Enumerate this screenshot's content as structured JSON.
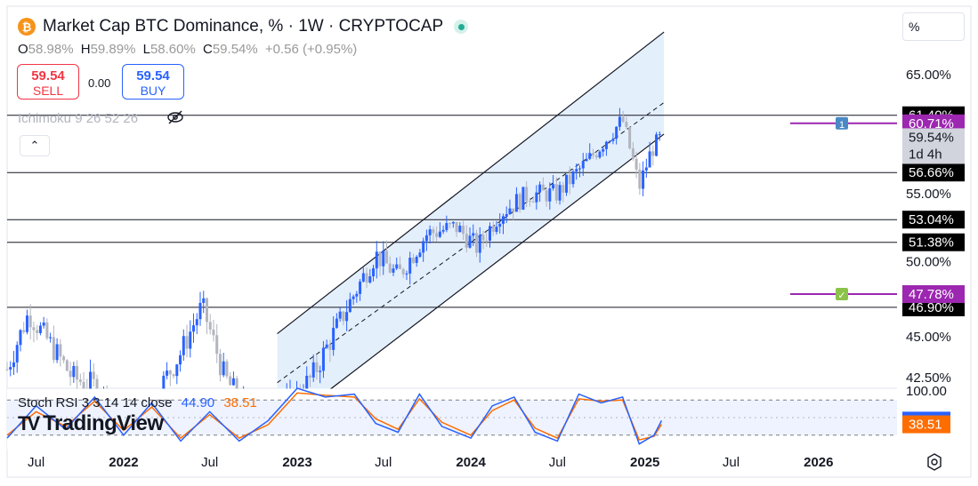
{
  "header": {
    "logo_glyph": "₿",
    "title": "Market Cap BTC Dominance, % · 1W · CRYPTOCAP",
    "ohlc": {
      "o_label": "O",
      "o": "58.98%",
      "h_label": "H",
      "h": "59.89%",
      "l_label": "L",
      "l": "58.60%",
      "c_label": "C",
      "c": "59.54%",
      "change": "+0.56 (+0.95%)"
    }
  },
  "trade": {
    "sell_price": "59.54",
    "sell_label": "SELL",
    "spread": "0.00",
    "buy_price": "59.54",
    "buy_label": "BUY"
  },
  "indicator_label": "Ichimoku 9 26 52 26",
  "scale_button": "%",
  "rsi_legend": {
    "label": "Stoch RSI 3 3 14 14 close",
    "k": "44.90",
    "d": "38.51"
  },
  "brand": {
    "mark": "TV",
    "name": "TradingView"
  },
  "icons": [
    "bitcoin-icon",
    "live-dot-icon",
    "eye-off-icon",
    "chevron-up-icon",
    "gear-icon",
    "alert-flag-icon",
    "check-icon"
  ],
  "colors": {
    "up": "#2962ff",
    "down": "#b2b5be",
    "channel_fill": "#dbe9fb",
    "rsi_k": "#2962ff",
    "rsi_d": "#ff6d00",
    "alert": "#9c27b0",
    "label_dark": "#000000"
  },
  "chart_data": {
    "type": "line",
    "title": "Market Cap BTC Dominance, % · 1W · CRYPTOCAP",
    "price_axis": {
      "ticks": [
        "65.00%",
        "60.00%",
        "55.00%",
        "50.00%",
        "45.00%",
        "42.50%"
      ],
      "scale": "log"
    },
    "time_axis": {
      "ticks": [
        "Jul",
        "2022",
        "Jul",
        "2023",
        "Jul",
        "2024",
        "Jul",
        "2025",
        "Jul",
        "2026"
      ],
      "range": [
        "2021-05",
        "2026-05"
      ]
    },
    "series": [
      {
        "values": [
          {
            "date": "2021-05-01",
            "value": 43.0
          },
          {
            "date": "2021-06-15",
            "value": 46.5
          },
          {
            "date": "2021-08-01",
            "value": 44.5
          },
          {
            "date": "2021-09-15",
            "value": 42.5
          },
          {
            "date": "2021-11-01",
            "value": 42.0
          },
          {
            "date": "2022-01-01",
            "value": 40.0
          },
          {
            "date": "2022-03-01",
            "value": 41.0
          },
          {
            "date": "2022-05-01",
            "value": 44.0
          },
          {
            "date": "2022-06-15",
            "value": 47.0
          },
          {
            "date": "2022-08-01",
            "value": 42.5
          },
          {
            "date": "2022-10-01",
            "value": 40.0
          },
          {
            "date": "2022-12-01",
            "value": 40.5
          },
          {
            "date": "2023-02-01",
            "value": 42.5
          },
          {
            "date": "2023-04-01",
            "value": 46.0
          },
          {
            "date": "2023-06-15",
            "value": 50.5
          },
          {
            "date": "2023-08-01",
            "value": 49.0
          },
          {
            "date": "2023-10-01",
            "value": 52.0
          },
          {
            "date": "2023-12-01",
            "value": 52.5
          },
          {
            "date": "2024-01-15",
            "value": 51.0
          },
          {
            "date": "2024-03-01",
            "value": 53.5
          },
          {
            "date": "2024-05-01",
            "value": 55.0
          },
          {
            "date": "2024-07-01",
            "value": 55.0
          },
          {
            "date": "2024-09-01",
            "value": 57.5
          },
          {
            "date": "2024-11-15",
            "value": 61.0
          },
          {
            "date": "2024-12-20",
            "value": 55.5
          },
          {
            "date": "2025-01-15",
            "value": 58.5
          },
          {
            "date": "2025-02-05",
            "value": 59.54
          }
        ]
      }
    ],
    "channel": {
      "upper": [
        {
          "date": "2022-11-20",
          "value": 45.2
        },
        {
          "date": "2025-02-10",
          "value": 69.0
        }
      ],
      "middle": [
        {
          "date": "2022-11-20",
          "value": 42.2
        },
        {
          "date": "2025-02-10",
          "value": 62.5
        }
      ],
      "lower": [
        {
          "date": "2022-11-20",
          "value": 39.5
        },
        {
          "date": "2025-02-10",
          "value": 59.8
        }
      ]
    },
    "horizontal_levels": [
      {
        "value": 61.4,
        "label": "61.40%",
        "style": "black"
      },
      {
        "value": 56.66,
        "label": "56.66%",
        "style": "black"
      },
      {
        "value": 53.04,
        "label": "53.04%",
        "style": "black"
      },
      {
        "value": 51.38,
        "label": "51.38%",
        "style": "black"
      },
      {
        "value": 46.9,
        "label": "46.90%",
        "style": "black"
      }
    ],
    "alerts": [
      {
        "value": 60.71,
        "label": "60.71%",
        "marker": "1"
      },
      {
        "value": 47.78,
        "label": "47.78%",
        "marker": "check"
      }
    ],
    "current": {
      "value": 59.54,
      "label": "59.54%",
      "countdown": "1d 4h"
    },
    "stoch_rsi": {
      "ylim": [
        0,
        100
      ],
      "tick": "100.00",
      "bands": [
        80,
        20
      ],
      "k_last": 44.9,
      "d_last": 38.51,
      "k": [
        {
          "date": "2021-05-01",
          "value": 15
        },
        {
          "date": "2021-07-01",
          "value": 70
        },
        {
          "date": "2021-09-01",
          "value": 30
        },
        {
          "date": "2021-11-01",
          "value": 85
        },
        {
          "date": "2022-01-01",
          "value": 20
        },
        {
          "date": "2022-03-01",
          "value": 75
        },
        {
          "date": "2022-05-01",
          "value": 10
        },
        {
          "date": "2022-07-01",
          "value": 60
        },
        {
          "date": "2022-09-01",
          "value": 10
        },
        {
          "date": "2022-11-01",
          "value": 45
        },
        {
          "date": "2023-01-01",
          "value": 100
        },
        {
          "date": "2023-03-01",
          "value": 85
        },
        {
          "date": "2023-05-01",
          "value": 90
        },
        {
          "date": "2023-06-15",
          "value": 40
        },
        {
          "date": "2023-08-01",
          "value": 25
        },
        {
          "date": "2023-09-15",
          "value": 90
        },
        {
          "date": "2023-11-01",
          "value": 35
        },
        {
          "date": "2024-01-01",
          "value": 15
        },
        {
          "date": "2024-02-15",
          "value": 70
        },
        {
          "date": "2024-04-01",
          "value": 85
        },
        {
          "date": "2024-05-15",
          "value": 25
        },
        {
          "date": "2024-07-01",
          "value": 10
        },
        {
          "date": "2024-08-15",
          "value": 90
        },
        {
          "date": "2024-10-01",
          "value": 75
        },
        {
          "date": "2024-11-15",
          "value": 85
        },
        {
          "date": "2024-12-20",
          "value": 5
        },
        {
          "date": "2025-01-20",
          "value": 20
        },
        {
          "date": "2025-02-05",
          "value": 44.9
        }
      ],
      "d": [
        {
          "date": "2021-05-01",
          "value": 20
        },
        {
          "date": "2021-07-01",
          "value": 60
        },
        {
          "date": "2021-09-01",
          "value": 35
        },
        {
          "date": "2021-11-01",
          "value": 78
        },
        {
          "date": "2022-01-01",
          "value": 28
        },
        {
          "date": "2022-03-01",
          "value": 68
        },
        {
          "date": "2022-05-01",
          "value": 15
        },
        {
          "date": "2022-07-01",
          "value": 55
        },
        {
          "date": "2022-09-01",
          "value": 15
        },
        {
          "date": "2022-11-01",
          "value": 38
        },
        {
          "date": "2023-01-01",
          "value": 92
        },
        {
          "date": "2023-03-01",
          "value": 88
        },
        {
          "date": "2023-05-01",
          "value": 85
        },
        {
          "date": "2023-06-15",
          "value": 48
        },
        {
          "date": "2023-08-01",
          "value": 30
        },
        {
          "date": "2023-09-15",
          "value": 82
        },
        {
          "date": "2023-11-01",
          "value": 42
        },
        {
          "date": "2024-01-01",
          "value": 20
        },
        {
          "date": "2024-02-15",
          "value": 62
        },
        {
          "date": "2024-04-01",
          "value": 80
        },
        {
          "date": "2024-05-15",
          "value": 32
        },
        {
          "date": "2024-07-01",
          "value": 15
        },
        {
          "date": "2024-08-15",
          "value": 82
        },
        {
          "date": "2024-10-01",
          "value": 78
        },
        {
          "date": "2024-11-15",
          "value": 80
        },
        {
          "date": "2024-12-20",
          "value": 12
        },
        {
          "date": "2025-01-20",
          "value": 18
        },
        {
          "date": "2025-02-05",
          "value": 38.51
        }
      ]
    }
  }
}
